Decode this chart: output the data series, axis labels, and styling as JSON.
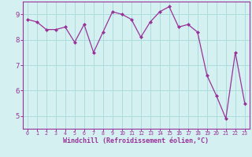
{
  "x": [
    0,
    1,
    2,
    3,
    4,
    5,
    6,
    7,
    8,
    9,
    10,
    11,
    12,
    13,
    14,
    15,
    16,
    17,
    18,
    19,
    20,
    21,
    22,
    23
  ],
  "y": [
    8.8,
    8.7,
    8.4,
    8.4,
    8.5,
    7.9,
    8.6,
    7.5,
    8.3,
    9.1,
    9.0,
    8.8,
    8.1,
    8.7,
    9.1,
    9.3,
    8.5,
    8.6,
    8.3,
    6.6,
    5.8,
    4.9,
    7.5,
    5.5
  ],
  "line_color": "#993399",
  "marker": "D",
  "marker_size": 2.0,
  "background_color": "#d4f0f0",
  "grid_color": "#aadddd",
  "xlabel": "Windchill (Refroidissement éolien,°C)",
  "xlabel_color": "#993399",
  "tick_color": "#993399",
  "spine_color": "#993399",
  "xlim": [
    -0.5,
    23.5
  ],
  "ylim": [
    4.5,
    9.5
  ],
  "yticks": [
    5,
    6,
    7,
    8,
    9
  ],
  "xticks": [
    0,
    1,
    2,
    3,
    4,
    5,
    6,
    7,
    8,
    9,
    10,
    11,
    12,
    13,
    14,
    15,
    16,
    17,
    18,
    19,
    20,
    21,
    22,
    23
  ],
  "xlabel_fontsize": 6.0,
  "xtick_fontsize": 4.8,
  "ytick_fontsize": 6.5
}
